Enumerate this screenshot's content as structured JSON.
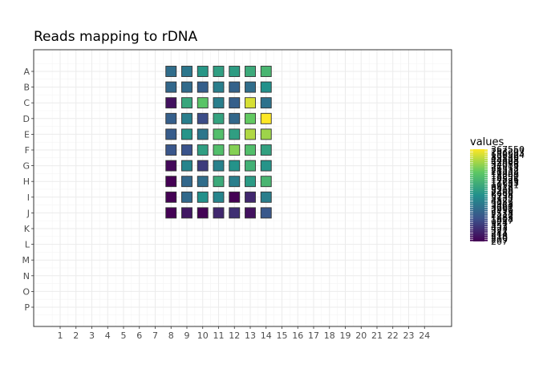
{
  "chart_data": {
    "type": "heatmap",
    "title": "Reads mapping to rDNA",
    "xlabel": "",
    "ylabel": "",
    "x_categories": [
      "1",
      "2",
      "3",
      "4",
      "5",
      "6",
      "7",
      "8",
      "9",
      "10",
      "11",
      "12",
      "13",
      "14",
      "15",
      "16",
      "17",
      "18",
      "19",
      "20",
      "21",
      "22",
      "23",
      "24"
    ],
    "y_categories": [
      "A",
      "B",
      "C",
      "D",
      "E",
      "F",
      "G",
      "H",
      "I",
      "J",
      "K",
      "L",
      "M",
      "N",
      "O",
      "P"
    ],
    "columns_with_data": [
      "8",
      "9",
      "10",
      "11",
      "12",
      "13",
      "14"
    ],
    "rows_with_data": [
      "A",
      "B",
      "C",
      "D",
      "E",
      "F",
      "G",
      "H",
      "I",
      "J"
    ],
    "values": [
      [
        3000,
        4000,
        11000,
        14000,
        13000,
        20000,
        30000
      ],
      [
        2500,
        2800,
        2000,
        5000,
        2200,
        3000,
        9000
      ],
      [
        300,
        18000,
        50000,
        5000,
        2000,
        233207,
        3500
      ],
      [
        2000,
        5000,
        1200,
        16000,
        2500,
        60000,
        367550
      ],
      [
        1800,
        10000,
        4000,
        40000,
        14000,
        150000,
        120000
      ],
      [
        1500,
        1400,
        14000,
        40000,
        89139,
        40000,
        15000
      ],
      [
        250,
        6000,
        800,
        5500,
        9500,
        25000,
        10000
      ],
      [
        207,
        2500,
        3000,
        20000,
        5000,
        12000,
        30000
      ],
      [
        210,
        2700,
        9000,
        6000,
        209,
        500,
        5000
      ],
      [
        211,
        350,
        220,
        500,
        600,
        300,
        1600
      ]
    ],
    "legend": {
      "title": "values",
      "placement": "right",
      "labels": [
        "367550",
        "233207",
        "196683",
        "156524",
        "89139",
        "48889",
        "44328",
        "42900",
        "34033",
        "27919",
        "26553",
        "24532",
        "21338",
        "19853",
        "18290",
        "16551",
        "14826",
        "12783",
        "11633",
        "10541",
        "9818",
        "9316",
        "8208",
        "7480",
        "6998",
        "5734",
        "5135",
        "4827",
        "4355",
        "3948",
        "3464",
        "3261",
        "2996",
        "2713",
        "2538",
        "2217",
        "1883",
        "1608",
        "1417",
        "924",
        "557",
        "453",
        "423",
        "321",
        "277",
        "244",
        "218",
        "210",
        "209",
        "207"
      ],
      "colorscale": [
        "#440154",
        "#3b528b",
        "#21908c",
        "#5dc863",
        "#fde725"
      ]
    },
    "grid": true
  }
}
